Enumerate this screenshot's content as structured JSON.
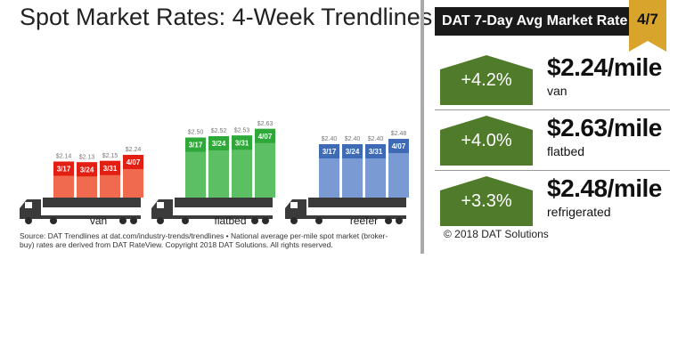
{
  "colors": {
    "van": "#ef6a4f",
    "flatbed": "#5cbf63",
    "reefer": "#7a9ad3",
    "van_label": "#e31e12",
    "flatbed_label": "#2ea838",
    "reefer_label": "#3e6ab6",
    "arrow": "#4f7b2a",
    "date_tab": "#d9a42b",
    "header_bg": "#1a1a1a"
  },
  "chart_data": {
    "type": "bar",
    "title": "Spot Market Rates: 4-Week Trendlines",
    "groups": [
      {
        "name": "van",
        "label": "van",
        "dates": [
          "3/17",
          "3/24",
          "3/31",
          "4/07"
        ],
        "values": [
          2.14,
          2.13,
          2.15,
          2.24
        ],
        "value_labels": [
          "$2.14",
          "$2.13",
          "$2.15",
          "$2.24"
        ]
      },
      {
        "name": "flatbed",
        "label": "flatbed",
        "dates": [
          "3/17",
          "3/24",
          "3/31",
          "4/07"
        ],
        "values": [
          2.5,
          2.52,
          2.53,
          2.63
        ],
        "value_labels": [
          "$2.50",
          "$2.52",
          "$2.53",
          "$2.63"
        ]
      },
      {
        "name": "reefer",
        "label": "reefer",
        "dates": [
          "3/17",
          "3/24",
          "3/31",
          "4/07"
        ],
        "values": [
          2.4,
          2.4,
          2.4,
          2.48
        ],
        "value_labels": [
          "$2.40",
          "$2.40",
          "$2.40",
          "$2.48"
        ]
      }
    ],
    "legend": "none",
    "grid": false
  },
  "source_text": "Source: DAT Trendlines at dat.com/industry-trends/trendlines • National average per-mile spot market (broker-buy) rates are derived from DAT RateView. Copyright 2018 DAT Solutions. All rights reserved.",
  "panel": {
    "title": "DAT 7-Day Avg Market Rate",
    "date": "4/7",
    "rows": [
      {
        "change": "+4.2%",
        "rate": "$2.24/mile",
        "equipment": "van"
      },
      {
        "change": "+4.0%",
        "rate": "$2.63/mile",
        "equipment": "flatbed"
      },
      {
        "change": "+3.3%",
        "rate": "$2.48/mile",
        "equipment": "refrigerated"
      }
    ],
    "copyright": "© 2018 DAT Solutions"
  }
}
